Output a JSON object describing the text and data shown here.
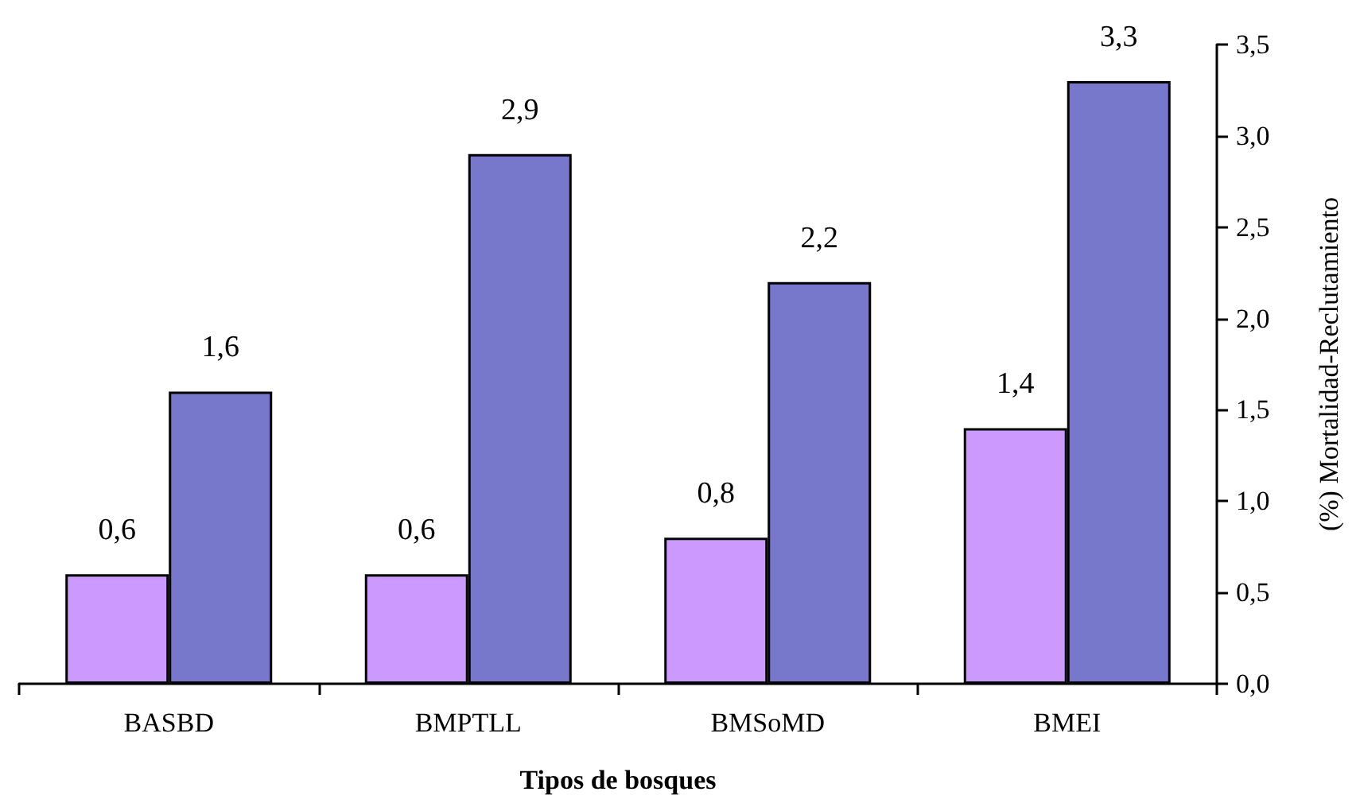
{
  "chart_data": {
    "type": "bar",
    "xlabel": "Tipos de bosques",
    "ylabel": "(%) Mortalidad-Reclutamiento",
    "categories": [
      "BASBD",
      "BMPTLL",
      "BMSoMD",
      "BMEI"
    ],
    "series": [
      {
        "color": "#cc99ff",
        "values": [
          0.6,
          0.6,
          0.8,
          1.4
        ],
        "value_labels": [
          "0,6",
          "0,6",
          "0,8",
          "1,4"
        ]
      },
      {
        "color": "#7777cc",
        "values": [
          1.6,
          2.9,
          2.2,
          3.3
        ],
        "value_labels": [
          "1,6",
          "2,9",
          "2,2",
          "3,3"
        ]
      }
    ],
    "ylim": [
      0,
      3.5
    ],
    "yticks": [
      {
        "value": 0,
        "label": "0,0"
      },
      {
        "value": 0.5,
        "label": "0,5"
      },
      {
        "value": 1,
        "label": "1,0"
      },
      {
        "value": 1.5,
        "label": "1,5"
      },
      {
        "value": 2,
        "label": "2,0"
      },
      {
        "value": 2.5,
        "label": "2,5"
      },
      {
        "value": 3,
        "label": "3,0"
      },
      {
        "value": 3.5,
        "label": "3,5"
      }
    ],
    "grid": false
  }
}
